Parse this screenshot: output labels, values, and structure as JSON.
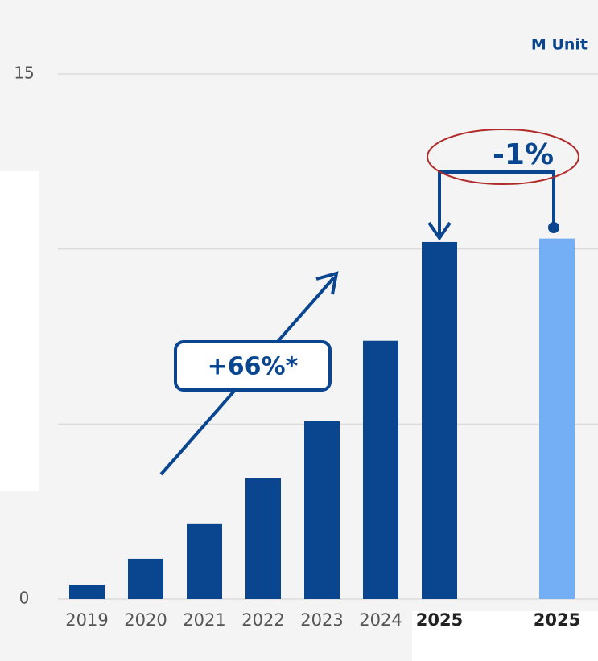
{
  "chart_data": {
    "type": "bar",
    "unit_label": "M Unit",
    "categories": [
      "2019",
      "2020",
      "2021",
      "2022",
      "2023",
      "2024",
      "2025",
      null,
      "2025"
    ],
    "values": [
      0.41,
      1.15,
      2.14,
      3.45,
      5.08,
      7.38,
      10.2,
      null,
      10.3
    ],
    "colors": [
      "#0a4690",
      "#0a4690",
      "#0a4690",
      "#0a4690",
      "#0a4690",
      "#0a4690",
      "#0a4690",
      null,
      "#74aff5"
    ],
    "ylim": [
      0,
      15
    ],
    "yticks": [
      0,
      15
    ],
    "grid_values": [
      0,
      5,
      10,
      15
    ],
    "grid": true,
    "annotations": [
      "+66%*",
      "-1%"
    ]
  }
}
